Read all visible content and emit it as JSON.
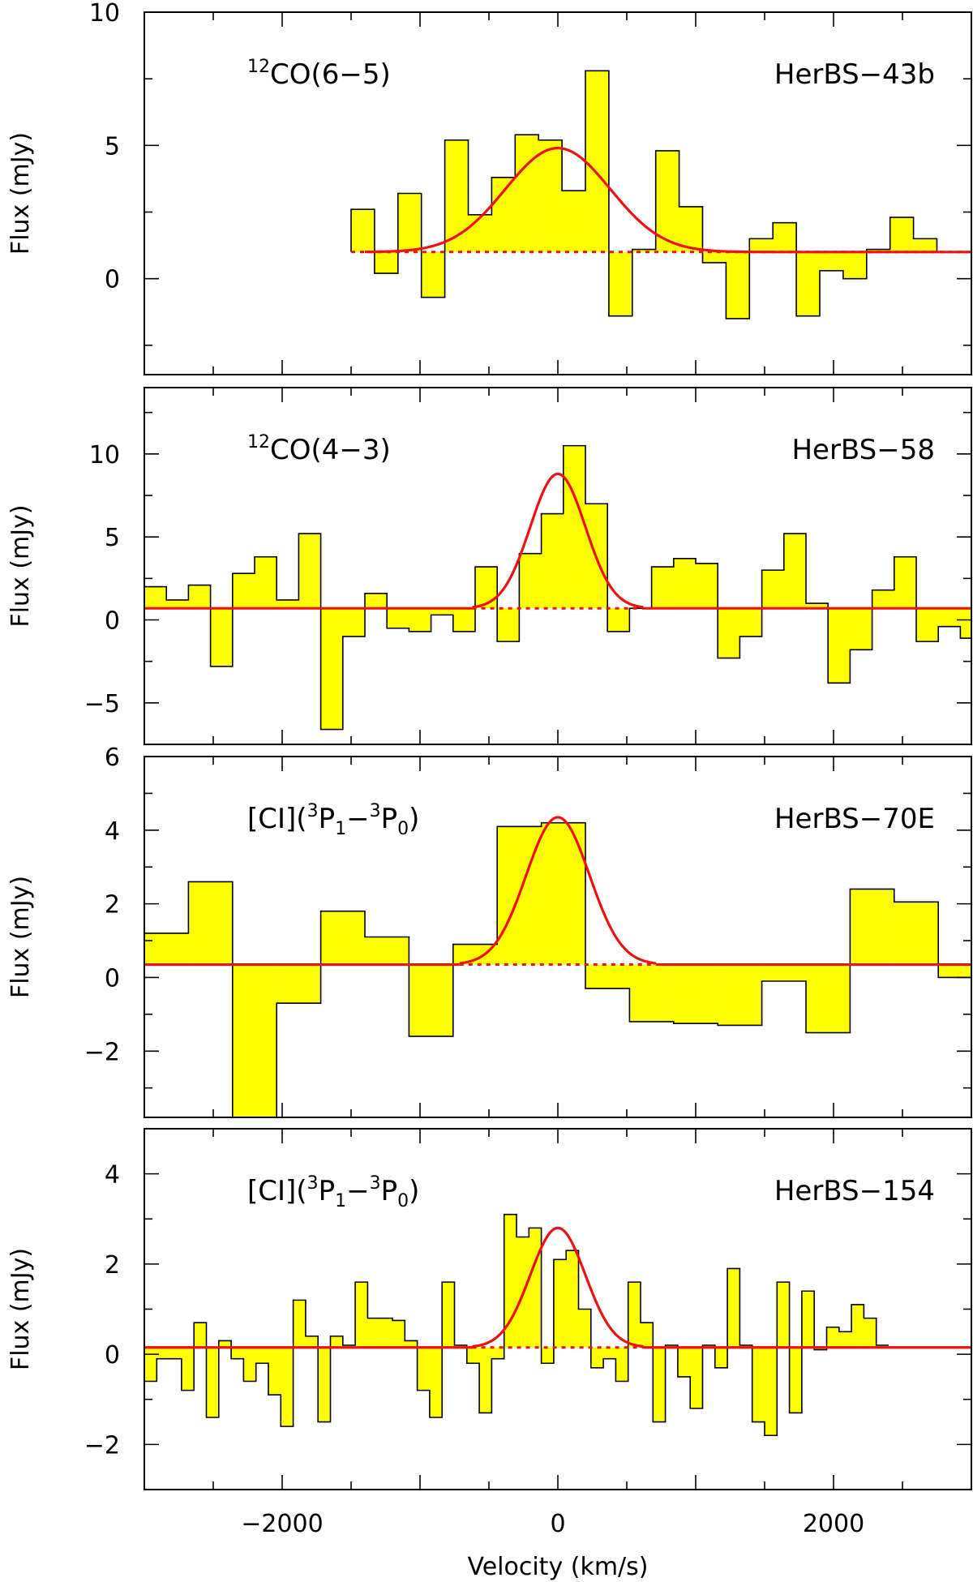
{
  "colors": {
    "fill": "#ffff00",
    "fit": "#ee1111",
    "axis": "#000000"
  },
  "x_axis": {
    "label": "Velocity (km/s)",
    "range": [
      -3000,
      3000
    ],
    "ticks": [
      -2000,
      0,
      2000
    ],
    "tick_labels": [
      "−2000",
      "0",
      "2000"
    ]
  },
  "chart_data": [
    {
      "type": "bar",
      "subtype": "step-histogram-with-gaussian-fit",
      "panel": "HerBS-43b",
      "source": "HerBS−43b",
      "line_main": "CO(6−5)",
      "line_sup": "12",
      "ylabel": "Flux (mJy)",
      "ylim": [
        -3.6,
        10
      ],
      "yticks": [
        0,
        5,
        10
      ],
      "ytick_labels": [
        "0",
        "5",
        "10"
      ],
      "baseline": 1.0,
      "baseline_style": "dotted",
      "gauss": {
        "amp": 3.9,
        "center": 0,
        "sigma": 380
      },
      "x_start": -1500,
      "bin_width": 170,
      "values": [
        2.6,
        0.2,
        3.2,
        -0.7,
        5.2,
        2.4,
        3.8,
        5.4,
        5.2,
        3.3,
        7.8,
        -1.4,
        1.1,
        4.8,
        2.7,
        0.6,
        -1.5,
        1.5,
        2.1,
        -1.4,
        0.3,
        0.0,
        1.1,
        2.3,
        1.5,
        1.0
      ]
    },
    {
      "type": "bar",
      "subtype": "step-histogram-with-gaussian-fit",
      "panel": "HerBS-58",
      "source": "HerBS−58",
      "line_main": "CO(4−3)",
      "line_sup": "12",
      "ylabel": "Flux (mJy)",
      "ylim": [
        -7.5,
        14
      ],
      "yticks": [
        -5,
        0,
        5,
        10
      ],
      "ytick_labels": [
        "−5",
        "0",
        "5",
        "10"
      ],
      "baseline": 0.7,
      "baseline_style": "solid-outside",
      "gauss": {
        "amp": 8.1,
        "center": 0,
        "sigma": 200
      },
      "x_start": -3000,
      "bin_width": 160,
      "values": [
        2.0,
        1.2,
        2.1,
        -2.8,
        2.8,
        3.8,
        1.2,
        5.2,
        -6.6,
        -1.0,
        1.6,
        -0.5,
        -0.7,
        0.3,
        -0.7,
        3.2,
        -1.3,
        4.0,
        6.4,
        10.5,
        7.0,
        -0.7,
        0.7,
        3.2,
        3.7,
        3.4,
        -2.3,
        -1.0,
        3.0,
        5.2,
        1.0,
        -3.8,
        -1.8,
        1.8,
        3.8,
        -1.3,
        -0.4,
        -1.1
      ]
    },
    {
      "type": "bar",
      "subtype": "step-histogram-with-gaussian-fit",
      "panel": "HerBS-70E",
      "source": "HerBS−70E",
      "line_main": "[CI](",
      "ylabel": "Flux (mJy)",
      "ylim": [
        -3.8,
        6
      ],
      "yticks": [
        -2,
        0,
        2,
        4,
        6
      ],
      "ytick_labels": [
        "−2",
        "0",
        "2",
        "4",
        "6"
      ],
      "baseline": 0.35,
      "baseline_style": "solid-outside",
      "gauss": {
        "amp": 4.0,
        "center": 0,
        "sigma": 230
      },
      "x_start": -3000,
      "bin_width": 320,
      "values": [
        1.2,
        2.6,
        -3.8,
        -0.7,
        1.8,
        1.1,
        -1.6,
        0.9,
        4.1,
        4.2,
        -0.3,
        -1.2,
        -1.25,
        -1.3,
        -0.1,
        -1.5,
        2.4,
        2.05,
        0.0
      ]
    },
    {
      "type": "bar",
      "subtype": "step-histogram-with-gaussian-fit",
      "panel": "HerBS-154",
      "source": "HerBS−154",
      "line_main": "[CI](",
      "ylabel": "Flux (mJy)",
      "ylim": [
        -3,
        5
      ],
      "yticks": [
        -2,
        0,
        2,
        4
      ],
      "ytick_labels": [
        "−2",
        "0",
        "2",
        "4"
      ],
      "baseline": 0.15,
      "baseline_style": "solid-outside",
      "gauss": {
        "amp": 2.65,
        "center": 0,
        "sigma": 200
      },
      "x_start": -3000,
      "bin_width": 90,
      "values": [
        -0.6,
        -0.1,
        -0.1,
        -0.8,
        0.7,
        -1.4,
        0.3,
        -0.1,
        -0.6,
        -0.2,
        -0.9,
        -1.6,
        1.2,
        0.4,
        -1.5,
        0.4,
        0.2,
        1.6,
        0.8,
        0.8,
        0.75,
        0.3,
        -0.8,
        -1.4,
        1.6,
        0.2,
        -0.2,
        -1.3,
        -0.1,
        3.1,
        2.6,
        2.8,
        -0.2,
        2.1,
        2.3,
        1.0,
        -0.3,
        -0.1,
        -0.6,
        1.6,
        0.7,
        -1.5,
        0.2,
        -0.5,
        -1.2,
        0.2,
        -0.3,
        1.9,
        0.2,
        -1.5,
        -1.8,
        1.6,
        -1.3,
        1.4,
        0.1,
        0.6,
        0.5,
        1.1,
        0.8,
        0.2
      ]
    }
  ]
}
